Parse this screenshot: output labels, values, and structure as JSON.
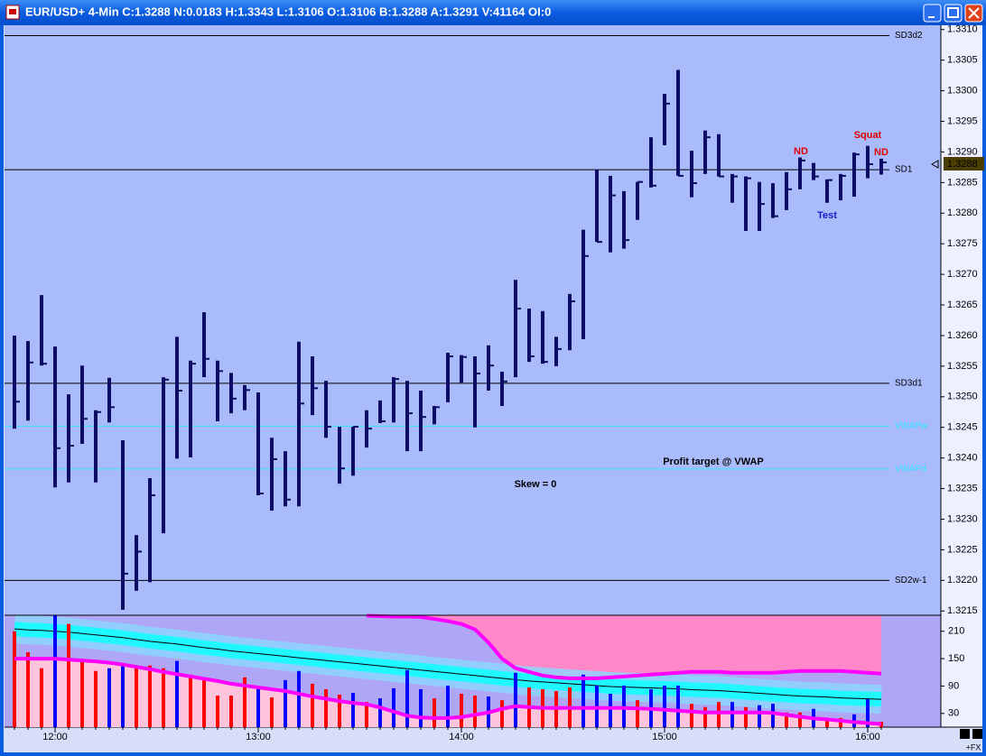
{
  "window_title": "EUR/USD+ 4-Min C:1.3288 N:0.0183 H:1.3343 L:1.3106 O:1.3106 B:1.3288 A:1.3291 V:41164 OI:0",
  "feed_label": "+FX",
  "chart_data": [
    {
      "type": "ohlc",
      "color": "#0c0c66",
      "high": [
        1.326,
        1.32591,
        1.32666,
        1.32582,
        1.32504,
        1.32551,
        1.32478,
        1.32531,
        1.32429,
        1.32274,
        1.32367,
        1.32532,
        1.32598,
        1.32559,
        1.32638,
        1.32559,
        1.32539,
        1.32519,
        1.32507,
        1.32433,
        1.32411,
        1.3259,
        1.32566,
        1.32526,
        1.32451,
        1.32451,
        1.32478,
        1.32494,
        1.32532,
        1.32526,
        1.3251,
        1.32485,
        1.32572,
        1.32568,
        1.32566,
        1.32584,
        1.32541,
        1.32691,
        1.32644,
        1.3264,
        1.32598,
        1.32668,
        1.32773,
        1.32871,
        1.32861,
        1.32836,
        1.32851,
        1.32924,
        1.32995,
        1.33034,
        1.32902,
        1.32935,
        1.32929,
        1.32864,
        1.3286,
        1.32851,
        1.32849,
        1.32867,
        1.32891,
        1.32882,
        1.32855,
        1.32864,
        1.32899,
        1.3291,
        1.32889
      ],
      "low": [
        1.32448,
        1.32461,
        1.32551,
        1.32352,
        1.3236,
        1.32423,
        1.3236,
        1.32458,
        1.32152,
        1.32183,
        1.32197,
        1.32277,
        1.32399,
        1.32401,
        1.32532,
        1.3246,
        1.32473,
        1.32478,
        1.32339,
        1.32314,
        1.32321,
        1.32321,
        1.3247,
        1.32433,
        1.32358,
        1.32371,
        1.32417,
        1.32457,
        1.32458,
        1.32411,
        1.32411,
        1.32455,
        1.32491,
        1.32523,
        1.3245,
        1.3251,
        1.32485,
        1.32532,
        1.32557,
        1.32554,
        1.3255,
        1.32576,
        1.32594,
        1.32753,
        1.32736,
        1.32742,
        1.32789,
        1.32842,
        1.32911,
        1.32861,
        1.32826,
        1.32864,
        1.3286,
        1.32817,
        1.32771,
        1.32771,
        1.32792,
        1.32805,
        1.32839,
        1.32854,
        1.32817,
        1.32821,
        1.32827,
        1.32857,
        1.32863
      ],
      "close": [
        1.32492,
        1.32556,
        1.32554,
        1.32416,
        1.3242,
        1.32464,
        1.32475,
        1.32483,
        1.32211,
        1.32247,
        1.32339,
        1.32528,
        1.3251,
        1.32554,
        1.32562,
        1.32542,
        1.32497,
        1.32511,
        1.32342,
        1.32398,
        1.32332,
        1.32489,
        1.32514,
        1.32451,
        1.32383,
        1.32451,
        1.32448,
        1.3246,
        1.32529,
        1.32473,
        1.32467,
        1.32483,
        1.32566,
        1.32565,
        1.32538,
        1.32551,
        1.32525,
        1.32644,
        1.32566,
        1.32557,
        1.32578,
        1.32656,
        1.3273,
        1.32753,
        1.32829,
        1.32756,
        1.32851,
        1.32845,
        1.32979,
        1.32861,
        1.32849,
        1.32924,
        1.3286,
        1.3286,
        1.32857,
        1.32815,
        1.32795,
        1.32839,
        1.32886,
        1.3286,
        1.32854,
        1.32861,
        1.32896,
        1.3288,
        1.32883
      ],
      "ylim": [
        1.32143,
        1.33107
      ],
      "yticks": [
        {
          "value": 1.331,
          "label": "1.3310"
        },
        1.3305,
        {
          "value": 1.33,
          "label": "1.3300"
        },
        1.3295,
        {
          "value": 1.329,
          "label": "1.3290"
        },
        1.3285,
        {
          "value": 1.328,
          "label": "1.3280"
        },
        1.3275,
        {
          "value": 1.327,
          "label": "1.3270"
        },
        1.3265,
        {
          "value": 1.326,
          "label": "1.3260"
        },
        1.3255,
        {
          "value": 1.325,
          "label": "1.3250"
        },
        1.3245,
        {
          "value": 1.324,
          "label": "1.3240"
        },
        1.3235,
        {
          "value": 1.323,
          "label": "1.3230"
        },
        1.3225,
        {
          "value": 1.322,
          "label": "1.3220"
        },
        1.3215
      ],
      "last_price": 1.3288,
      "levels": [
        {
          "name": "SD3d2",
          "value": 1.3309,
          "color": "#000000"
        },
        {
          "name": "SD1",
          "value": 1.32871,
          "color": "#000000"
        },
        {
          "name": "SD3d1",
          "value": 1.32522,
          "color": "#000000"
        },
        {
          "name": "VWAPw",
          "value": 1.32452,
          "color": "#30e4ff"
        },
        {
          "name": "VWAPd",
          "value": 1.32382,
          "color": "#30e4ff"
        },
        {
          "name": "SD2w-1",
          "value": 1.322,
          "color": "#000000"
        }
      ],
      "annotations": [
        {
          "text": "ND",
          "color": "#e00000"
        },
        {
          "text": "Squat",
          "color": "#e00000"
        },
        {
          "text": "ND",
          "color": "#e00000"
        },
        {
          "text": "Test",
          "color": "#1a1acc"
        },
        {
          "text": "Profit target @ VWAP",
          "color": "#000000"
        },
        {
          "text": "Skew = 0",
          "color": "#000000"
        }
      ]
    },
    {
      "type": "bar",
      "categories": [
        null,
        null,
        null,
        "12:00",
        null,
        null,
        null,
        null,
        null,
        null,
        null,
        null,
        null,
        null,
        null,
        null,
        null,
        null,
        "13:00",
        null,
        null,
        null,
        null,
        null,
        null,
        null,
        null,
        null,
        null,
        null,
        null,
        null,
        null,
        "14:00",
        null,
        null,
        null,
        null,
        null,
        null,
        null,
        null,
        null,
        null,
        null,
        null,
        null,
        null,
        "15:00",
        null,
        null,
        null,
        null,
        null,
        null,
        null,
        null,
        null,
        null,
        null,
        null,
        null,
        null,
        "16:00",
        null
      ],
      "values": [
        210,
        164,
        129,
        245,
        226,
        145,
        123,
        129,
        135,
        129,
        135,
        129,
        145,
        115,
        109,
        69,
        69,
        109,
        87,
        65,
        103,
        123,
        95,
        83,
        71,
        75,
        55,
        63,
        85,
        125,
        83,
        63,
        91,
        73,
        69,
        67,
        59,
        119,
        87,
        83,
        79,
        87,
        115,
        91,
        73,
        91,
        59,
        83,
        91,
        91,
        51,
        44,
        55,
        55,
        44,
        48,
        51,
        32,
        32,
        40,
        20,
        20,
        28,
        61,
        12
      ],
      "colors": [
        "#ff0000",
        "#ff0000",
        "#ff0000",
        "#0000ff",
        "#ff0000",
        "#ff0000",
        "#ff0000",
        "#0000ff",
        "#0000ff",
        "#ff0000",
        "#ff0000",
        "#ff0000",
        "#0000ff",
        "#ff0000",
        "#ff0000",
        "#ff0000",
        "#ff0000",
        "#ff0000",
        "#0000ff",
        "#ff0000",
        "#0000ff",
        "#0000ff",
        "#ff0000",
        "#ff0000",
        "#ff0000",
        "#0000ff",
        "#ff0000",
        "#0000ff",
        "#0000ff",
        "#0000ff",
        "#0000ff",
        "#ff0000",
        "#0000ff",
        "#ff0000",
        "#ff0000",
        "#0000ff",
        "#ff0000",
        "#0000ff",
        "#ff0000",
        "#ff0000",
        "#ff0000",
        "#ff0000",
        "#0000ff",
        "#0000ff",
        "#0000ff",
        "#0000ff",
        "#ff0000",
        "#0000ff",
        "#0000ff",
        "#0000ff",
        "#ff0000",
        "#ff0000",
        "#ff0000",
        "#0000ff",
        "#ff0000",
        "#0000ff",
        "#0000ff",
        "#ff0000",
        "#ff0000",
        "#0000ff",
        "#ff0000",
        "#ff0000",
        "#0000ff",
        "#0000ff",
        "#ff0000"
      ],
      "lines": [
        {
          "color": "#ff00ff",
          "values": [
            null,
            null,
            null,
            null,
            null,
            null,
            null,
            null,
            null,
            null,
            null,
            null,
            null,
            null,
            null,
            null,
            null,
            null,
            null,
            null,
            null,
            null,
            null,
            null,
            null,
            null,
            244,
            243,
            242,
            242,
            241,
            237,
            232,
            226,
            214,
            185,
            150,
            129,
            121,
            113,
            109,
            107,
            107,
            107,
            109,
            111,
            113,
            115,
            117,
            119,
            121,
            121,
            121,
            119,
            119,
            119,
            119,
            121,
            123,
            123,
            123,
            123,
            121,
            119,
            117
          ]
        },
        {
          "color": "#000000",
          "values": [
            215,
            213,
            212,
            210,
            208,
            205,
            202,
            199,
            196,
            192,
            188,
            185,
            182,
            178,
            174,
            171,
            167,
            164,
            161,
            158,
            155,
            152,
            149,
            146,
            143,
            140,
            137,
            134,
            131,
            128,
            125,
            122,
            119,
            116,
            113,
            110,
            107,
            104,
            101,
            99,
            97,
            95,
            93,
            91,
            89,
            88,
            87,
            86,
            85,
            84,
            82,
            81,
            80,
            78,
            76,
            74,
            72,
            70,
            68,
            67,
            66,
            64,
            63,
            62,
            61
          ]
        },
        {
          "color": "#ff00ff",
          "values": [
            150,
            150,
            150,
            150,
            148,
            146,
            144,
            141,
            137,
            132,
            127,
            121,
            116,
            111,
            106,
            101,
            95,
            91,
            87,
            83,
            79,
            73,
            67,
            62,
            57,
            53,
            50,
            43,
            34,
            25,
            21,
            20,
            20,
            22,
            27,
            32,
            40,
            46,
            44,
            42,
            42,
            42,
            42,
            42,
            42,
            42,
            41,
            40,
            38,
            36,
            34,
            32,
            32,
            32,
            32,
            32,
            31,
            27,
            23,
            19,
            17,
            14,
            11,
            9,
            7
          ]
        }
      ],
      "ylim": [
        0,
        245
      ],
      "yticks": [
        30,
        90,
        150,
        210
      ]
    }
  ]
}
